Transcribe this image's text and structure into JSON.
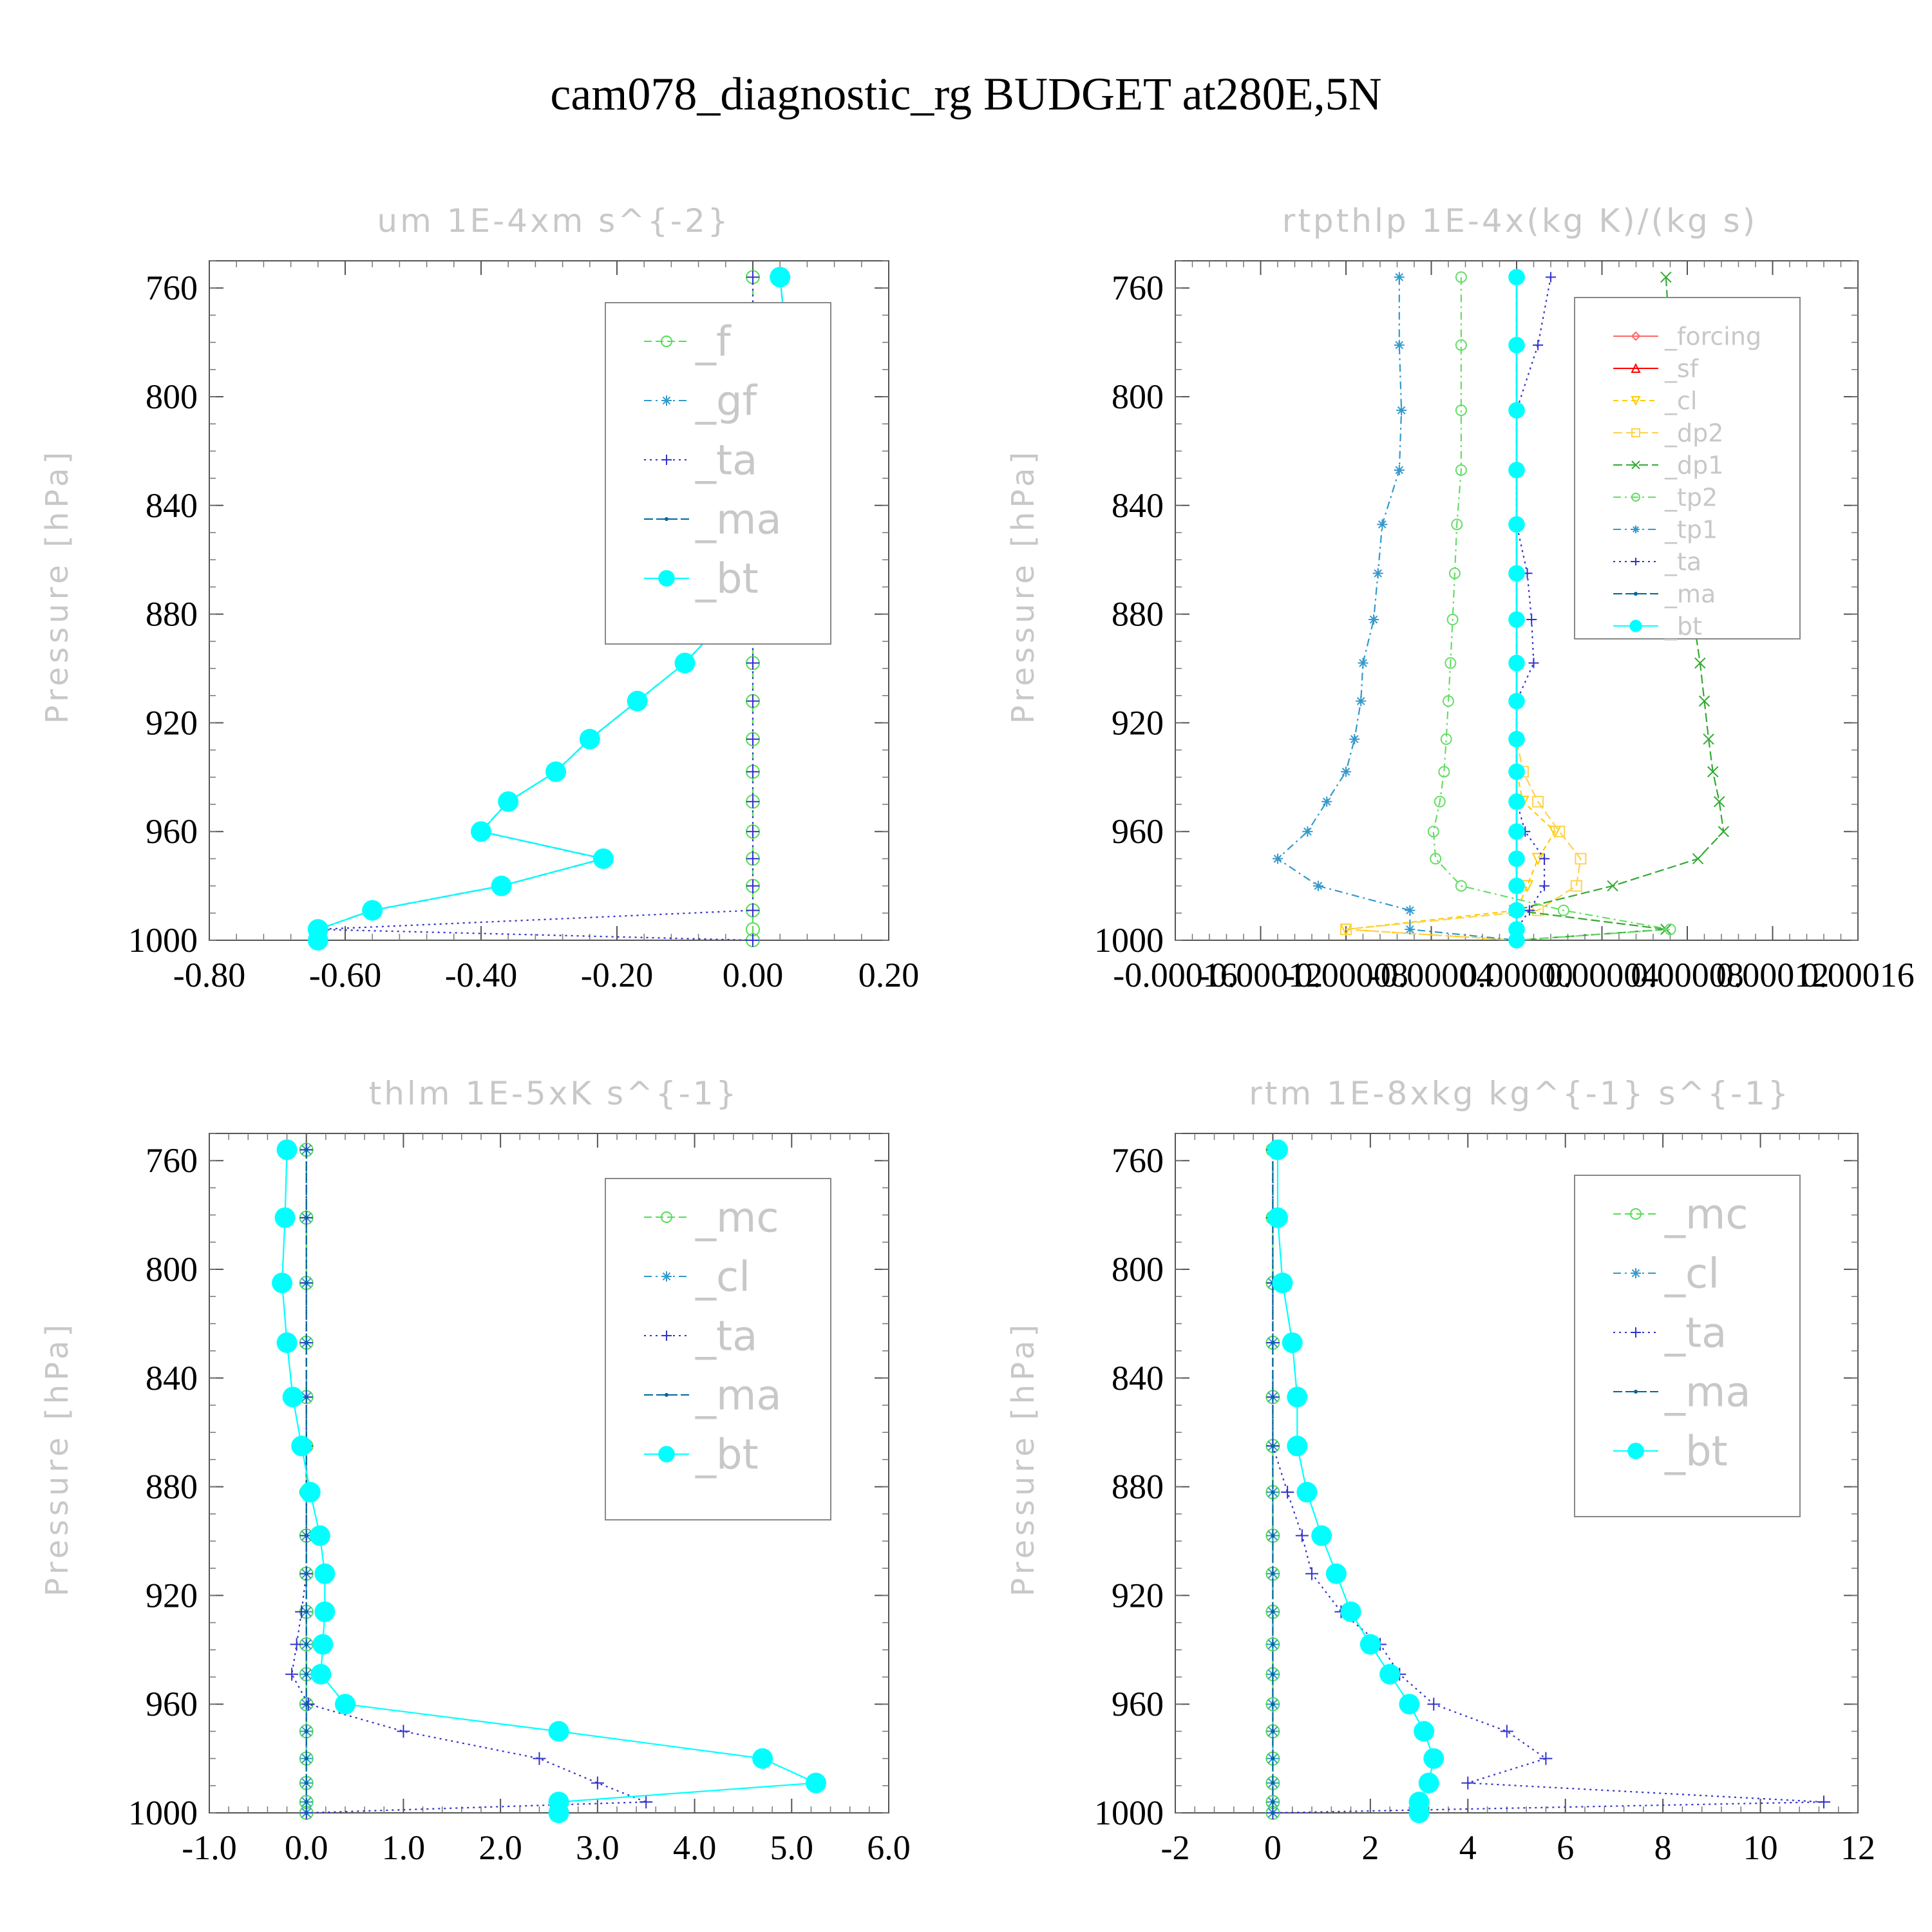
{
  "title": "cam078_diagnostic_rg  BUDGET at280E,5N",
  "y_axis_label": "Pressure [hPa]",
  "colors": {
    "forcing": "#ff6666",
    "sf": "#ff0000",
    "cl_yellow": "#ffcc00",
    "dp2": "#ffd24d",
    "dp1": "#33aa33",
    "f": "#55dd55",
    "tp2": "#66dd66",
    "mc": "#55dd55",
    "gf": "#3399cc",
    "tp1": "#3399cc",
    "cl": "#3399cc",
    "ta": "#3333cc",
    "ma": "#006699",
    "bt": "#00ffff"
  },
  "chart_data": [
    {
      "type": "line",
      "title": "um  1E-4xm s^{-2}",
      "ylabel": "Pressure [hPa]",
      "xlim": [
        -0.8,
        0.2
      ],
      "xticks": [
        "-0.80",
        "-0.60",
        "-0.40",
        "-0.20",
        "0.00",
        "0.20"
      ],
      "ylim": [
        1000,
        750
      ],
      "yticks": [
        "760",
        "800",
        "840",
        "880",
        "920",
        "960",
        "1000"
      ],
      "y": [
        756,
        781,
        805,
        827,
        847,
        865,
        882,
        898,
        912,
        926,
        938,
        949,
        960,
        970,
        980,
        989,
        996,
        1000
      ],
      "series": [
        {
          "name": "_f",
          "key": "f",
          "marker": "circle",
          "dash": "12,6",
          "values": [
            0,
            0,
            0,
            0,
            0,
            0,
            0,
            0,
            0,
            0,
            0,
            0,
            0,
            0,
            0,
            0,
            0,
            0
          ]
        },
        {
          "name": "_gf",
          "key": "gf",
          "marker": "asterisk",
          "dash": "12,6,3,6",
          "values": [
            0.04,
            0.05,
            0.06,
            0.06,
            0.04,
            0.01,
            -0.04,
            -0.1,
            -0.17,
            -0.24,
            -0.29,
            -0.36,
            -0.4,
            -0.22,
            -0.37,
            -0.56,
            -0.64,
            -0.64
          ]
        },
        {
          "name": "_ta",
          "key": "ta",
          "marker": "plus",
          "dash": "3,6",
          "values": [
            0.0,
            0.0,
            0.0,
            0.0,
            0.0,
            0.0,
            0.0,
            0.0,
            0.0,
            0.0,
            0.0,
            0.0,
            0.0,
            0.0,
            0.0,
            0.0,
            -0.64,
            0.0
          ]
        },
        {
          "name": "_ma",
          "key": "ma",
          "marker": "dot",
          "dash": "14,5",
          "values": [
            0.04,
            0.05,
            0.06,
            0.06,
            0.04,
            0.01,
            -0.04,
            -0.1,
            -0.17,
            -0.24,
            -0.29,
            -0.36,
            -0.4,
            -0.22,
            -0.37,
            -0.56,
            -0.64,
            -0.64
          ]
        },
        {
          "name": "_bt",
          "key": "bt",
          "marker": "filled",
          "dash": "",
          "values": [
            0.04,
            0.05,
            0.06,
            0.06,
            0.04,
            0.01,
            -0.04,
            -0.1,
            -0.17,
            -0.24,
            -0.29,
            -0.36,
            -0.4,
            -0.22,
            -0.37,
            -0.56,
            -0.64,
            -0.64
          ]
        }
      ],
      "legend": "top-right"
    },
    {
      "type": "line",
      "title": "rtpthlp  1E-4x(kg K)/(kg s)",
      "ylabel": "Pressure [hPa]",
      "xlim": [
        -0.00016,
        0.00016
      ],
      "xticks": [
        "-0.00016",
        "-0.00012",
        "-0.00008",
        "-0.00004",
        "0.00000",
        "0.00004",
        "0.00008",
        "0.00012",
        "0.00016"
      ],
      "ylim": [
        1000,
        750
      ],
      "yticks": [
        "760",
        "800",
        "840",
        "880",
        "920",
        "960",
        "1000"
      ],
      "y": [
        756,
        781,
        805,
        827,
        847,
        865,
        882,
        898,
        912,
        926,
        938,
        949,
        960,
        970,
        980,
        989,
        996,
        1000
      ],
      "series": [
        {
          "name": "_forcing",
          "key": "forcing",
          "marker": "diamond",
          "dash": "",
          "values": [
            0,
            0,
            0,
            0,
            0,
            0,
            0,
            0,
            0,
            0,
            0,
            0,
            0,
            0,
            0,
            0,
            0,
            0
          ]
        },
        {
          "name": "_sf",
          "key": "sf",
          "marker": "triangle",
          "dash": "",
          "values": [
            0,
            0,
            0,
            0,
            0,
            0,
            0,
            0,
            0,
            0,
            0,
            0,
            0,
            0,
            0,
            0,
            0,
            0
          ]
        },
        {
          "name": "_cl",
          "key": "cl_yellow",
          "marker": "triangle-down",
          "dash": "8,6",
          "values": [
            0,
            0,
            0,
            0,
            0,
            0,
            0,
            0,
            0,
            0,
            0,
            3e-06,
            1.8e-05,
            1e-05,
            5e-06,
            0,
            -8e-05,
            0
          ]
        },
        {
          "name": "_dp2",
          "key": "dp2",
          "marker": "square",
          "dash": "14,6",
          "values": [
            0,
            0,
            0,
            0,
            0,
            0,
            0,
            0,
            0,
            0,
            3e-06,
            1e-05,
            2e-05,
            3e-05,
            2.8e-05,
            1e-05,
            -8e-05,
            0
          ]
        },
        {
          "name": "_dp1",
          "key": "dp1",
          "marker": "cross",
          "dash": "14,6",
          "values": [
            7e-05,
            7.2e-05,
            7.5e-05,
            7.7e-05,
            7.8e-05,
            8e-05,
            8.3e-05,
            8.6e-05,
            8.8e-05,
            9e-05,
            9.2e-05,
            9.5e-05,
            9.7e-05,
            8.5e-05,
            4.5e-05,
            -1e-06,
            7e-05,
            0
          ]
        },
        {
          "name": "_tp2",
          "key": "tp2",
          "marker": "circle",
          "dash": "12,6,3,6",
          "values": [
            -2.6e-05,
            -2.6e-05,
            -2.6e-05,
            -2.6e-05,
            -2.8e-05,
            -2.9e-05,
            -3e-05,
            -3.1e-05,
            -3.2e-05,
            -3.3e-05,
            -3.4e-05,
            -3.6e-05,
            -3.9e-05,
            -3.8e-05,
            -2.6e-05,
            2.2e-05,
            7.2e-05,
            0
          ]
        },
        {
          "name": "_tp1",
          "key": "tp1",
          "marker": "asterisk",
          "dash": "12,6,3,6",
          "values": [
            -5.5e-05,
            -5.5e-05,
            -5.4e-05,
            -5.5e-05,
            -6.3e-05,
            -6.5e-05,
            -6.7e-05,
            -7.2e-05,
            -7.3e-05,
            -7.6e-05,
            -8e-05,
            -8.9e-05,
            -9.8e-05,
            -0.000112,
            -9.3e-05,
            -5e-05,
            -5e-05,
            0
          ]
        },
        {
          "name": "_ta",
          "key": "ta",
          "marker": "plus",
          "dash": "3,6",
          "values": [
            1.6e-05,
            1e-05,
            0,
            0,
            0,
            5e-06,
            7e-06,
            8e-06,
            0,
            0,
            0,
            0,
            4e-06,
            1.3e-05,
            1.3e-05,
            6e-06,
            0,
            0
          ]
        },
        {
          "name": "_ma",
          "key": "ma",
          "marker": "dot",
          "dash": "14,5",
          "values": [
            0,
            0,
            0,
            0,
            0,
            0,
            0,
            0,
            0,
            0,
            0,
            0,
            0,
            0,
            0,
            0,
            0,
            0
          ]
        },
        {
          "name": "_bt",
          "key": "bt",
          "marker": "filled",
          "dash": "",
          "values": [
            0,
            0,
            0,
            0,
            0,
            0,
            0,
            0,
            0,
            0,
            0,
            0,
            0,
            0,
            0,
            0,
            0,
            0
          ]
        }
      ],
      "legend": "top-right"
    },
    {
      "type": "line",
      "title": "thlm  1E-5xK s^{-1}",
      "ylabel": "Pressure [hPa]",
      "xlim": [
        -1.0,
        6.0
      ],
      "xticks": [
        "-1.0",
        "0.0",
        "1.0",
        "2.0",
        "3.0",
        "4.0",
        "5.0",
        "6.0"
      ],
      "ylim": [
        1000,
        750
      ],
      "yticks": [
        "760",
        "800",
        "840",
        "880",
        "920",
        "960",
        "1000"
      ],
      "y": [
        756,
        781,
        805,
        827,
        847,
        865,
        882,
        898,
        912,
        926,
        938,
        949,
        960,
        970,
        980,
        989,
        996,
        1000
      ],
      "series": [
        {
          "name": "_mc",
          "key": "mc",
          "marker": "circle",
          "dash": "12,6",
          "values": [
            0,
            0,
            0,
            0,
            0,
            0,
            0,
            0,
            0,
            0,
            0,
            0,
            0,
            0,
            0,
            0,
            0,
            0
          ]
        },
        {
          "name": "_cl",
          "key": "cl",
          "marker": "asterisk",
          "dash": "12,6,3,6",
          "values": [
            0,
            0,
            0,
            0,
            0,
            0,
            0,
            0,
            0,
            0,
            0,
            0,
            0,
            0,
            0,
            0,
            0,
            0
          ]
        },
        {
          "name": "_ta",
          "key": "ta",
          "marker": "plus",
          "dash": "3,6",
          "values": [
            0,
            0,
            0,
            0,
            0,
            0,
            0,
            0,
            0,
            -0.05,
            -0.1,
            -0.15,
            0.02,
            1.0,
            2.4,
            3.0,
            3.5,
            0
          ]
        },
        {
          "name": "_ma",
          "key": "ma",
          "marker": "dot",
          "dash": "14,5",
          "values": [
            0,
            0,
            0,
            0,
            0,
            0,
            0,
            0,
            0,
            0,
            0,
            0,
            0,
            0,
            0,
            0,
            0,
            0
          ]
        },
        {
          "name": "_bt",
          "key": "bt",
          "marker": "filled",
          "dash": "",
          "values": [
            -0.2,
            -0.22,
            -0.25,
            -0.2,
            -0.14,
            -0.05,
            0.04,
            0.14,
            0.19,
            0.19,
            0.17,
            0.15,
            0.4,
            2.6,
            4.7,
            5.25,
            2.6,
            2.6
          ]
        }
      ],
      "legend": "top-right"
    },
    {
      "type": "line",
      "title": "rtm  1E-8xkg kg^{-1} s^{-1}",
      "ylabel": "Pressure [hPa]",
      "xlim": [
        -2,
        12
      ],
      "xticks": [
        "-2",
        "0",
        "2",
        "4",
        "6",
        "8",
        "10",
        "12"
      ],
      "ylim": [
        1000,
        750
      ],
      "yticks": [
        "760",
        "800",
        "840",
        "880",
        "920",
        "960",
        "1000"
      ],
      "y": [
        756,
        781,
        805,
        827,
        847,
        865,
        882,
        898,
        912,
        926,
        938,
        949,
        960,
        970,
        980,
        989,
        996,
        1000
      ],
      "series": [
        {
          "name": "_mc",
          "key": "mc",
          "marker": "circle",
          "dash": "12,6",
          "values": [
            0,
            0,
            0,
            0,
            0,
            0,
            0,
            0,
            0,
            0,
            0,
            0,
            0,
            0,
            0,
            0,
            0,
            0
          ]
        },
        {
          "name": "_cl",
          "key": "cl",
          "marker": "asterisk",
          "dash": "12,6,3,6",
          "values": [
            0,
            0,
            0,
            0,
            0,
            0,
            0,
            0,
            0,
            0,
            0,
            0,
            0,
            0,
            0,
            0,
            0,
            0
          ]
        },
        {
          "name": "_ta",
          "key": "ta",
          "marker": "plus",
          "dash": "3,6",
          "values": [
            0.0,
            0.0,
            0.0,
            0.0,
            0.0,
            0.0,
            0.3,
            0.6,
            0.8,
            1.4,
            2.2,
            2.6,
            3.3,
            4.8,
            5.6,
            4.0,
            11.3,
            0
          ]
        },
        {
          "name": "_ma",
          "key": "ma",
          "marker": "dot",
          "dash": "14,5",
          "values": [
            0,
            0,
            0,
            0,
            0,
            0,
            0,
            0,
            0,
            0,
            0,
            0,
            0,
            0,
            0,
            0,
            0,
            0
          ]
        },
        {
          "name": "_bt",
          "key": "bt",
          "marker": "filled",
          "dash": "",
          "values": [
            0.1,
            0.1,
            0.2,
            0.4,
            0.5,
            0.5,
            0.7,
            1.0,
            1.3,
            1.6,
            2.0,
            2.4,
            2.8,
            3.1,
            3.3,
            3.2,
            3.0,
            3.0
          ]
        }
      ],
      "legend": "top-right"
    }
  ]
}
